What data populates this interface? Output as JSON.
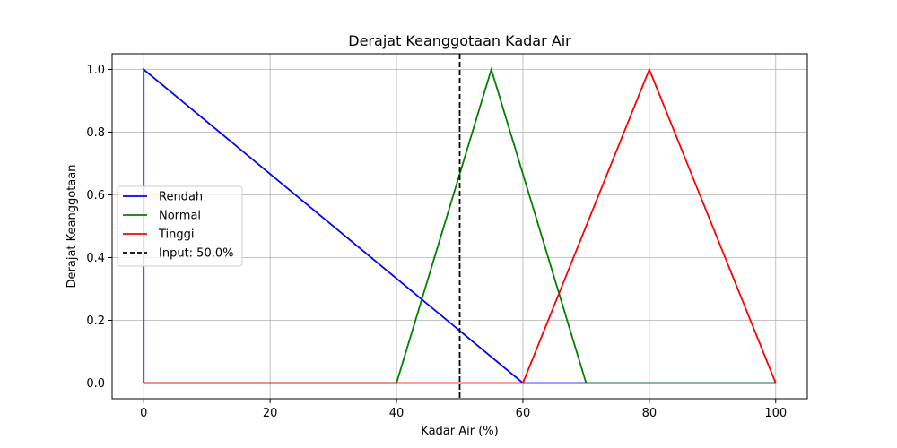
{
  "chart_data": {
    "type": "line",
    "title": "Derajat Keanggotaan Kadar Air",
    "xlabel": "Kadar Air (%)",
    "ylabel": "Derajat Keanggotaan",
    "xlim": [
      -5,
      105
    ],
    "ylim": [
      -0.05,
      1.05
    ],
    "xticks": [
      0,
      20,
      40,
      60,
      80,
      100
    ],
    "xtick_labels": [
      "0",
      "20",
      "40",
      "60",
      "80",
      "100"
    ],
    "yticks": [
      0,
      0.2,
      0.4,
      0.6,
      0.8,
      1.0
    ],
    "ytick_labels": [
      "0.0",
      "0.2",
      "0.4",
      "0.6",
      "0.8",
      "1.0"
    ],
    "grid": true,
    "legend_position": "center-left",
    "series": [
      {
        "name": "Rendah",
        "color": "#0000ff",
        "x": [
          0,
          0,
          60,
          100
        ],
        "y": [
          0,
          1,
          0,
          0
        ]
      },
      {
        "name": "Normal",
        "color": "#008000",
        "x": [
          0,
          40,
          55,
          70,
          100
        ],
        "y": [
          0,
          0,
          1,
          0,
          0
        ]
      },
      {
        "name": "Tinggi",
        "color": "#ff0000",
        "x": [
          0,
          60,
          80,
          100
        ],
        "y": [
          0,
          0,
          1,
          0
        ]
      }
    ],
    "vline": {
      "name": "Input: 50.0%",
      "x": 50,
      "color": "#000000",
      "style": "dashed"
    }
  }
}
